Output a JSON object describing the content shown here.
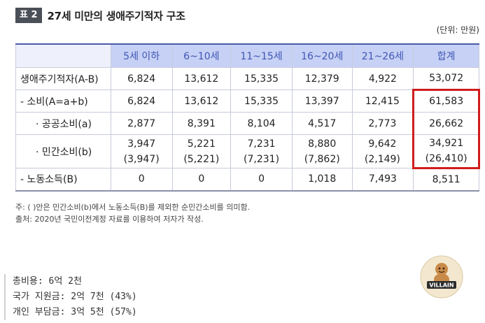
{
  "table_tag": "표 2",
  "title": "27세 미만의 생애주기적자 구조",
  "unit": "(단위: 만원)",
  "columns": [
    "5세 이하",
    "6~10세",
    "11~15세",
    "16~20세",
    "21~26세",
    "합계"
  ],
  "rows": [
    {
      "label": "생애주기적자(A-B)",
      "values": [
        "6,824",
        "13,612",
        "15,335",
        "12,379",
        "4,922",
        "53,072"
      ]
    },
    {
      "label": "- 소비(A=a+b)",
      "values": [
        "6,824",
        "13,612",
        "15,335",
        "13,397",
        "12,415",
        "61,583"
      ]
    },
    {
      "label": "· 공공소비(a)",
      "values": [
        "2,877",
        "8,391",
        "8,104",
        "4,517",
        "2,773",
        "26,662"
      ]
    },
    {
      "label": "· 민간소비(b)",
      "values": [
        "3,947",
        "5,221",
        "7,231",
        "8,880",
        "9,642",
        "34,921"
      ],
      "subvalues": [
        "(3,947)",
        "(5,221)",
        "(7,231)",
        "(7,862)",
        "(2,149)",
        "(26,410)"
      ]
    },
    {
      "label": "- 노동소득(B)",
      "values": [
        "0",
        "0",
        "0",
        "1,018",
        "7,493",
        "8,511"
      ]
    }
  ],
  "notes": [
    "주: ( )안은 민간소비(b)에서 노동소득(B)를 제외한 순민간소비를 의미함.",
    "출처: 2020년 국민이전계정 자료를 이용하여 저자가 작성."
  ],
  "summary": [
    "총비용: 6억 2천",
    "국가 지원금: 2억 7천 (43%)",
    "개인 부담금: 3억 5천 (57%)"
  ],
  "logo_text": "VILLAIN",
  "colors": {
    "header_bg": "#c7d1f5",
    "header_text": "#3f56b4",
    "highlight": "#d01c1c",
    "tag_bg": "#4b4f58"
  }
}
